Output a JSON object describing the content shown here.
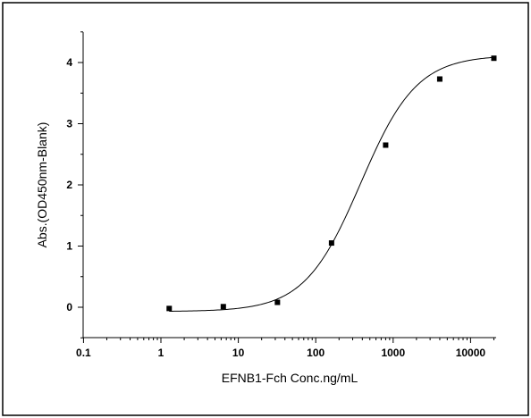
{
  "chart_data": {
    "type": "scatter",
    "title": "",
    "xlabel": "EFNB1-Fch Conc.ng/mL",
    "ylabel": "Abs.(OD450nm-Blank)",
    "x_scale": "log",
    "xlim": [
      0.1,
      20000
    ],
    "ylim": [
      -0.5,
      4.5
    ],
    "x_ticks": [
      0.1,
      1,
      10,
      100,
      1000,
      10000
    ],
    "x_tick_labels": [
      "0.1",
      "1",
      "10",
      "100",
      "1000",
      "10000"
    ],
    "y_ticks": [
      0,
      1,
      2,
      3,
      4
    ],
    "y_tick_labels": [
      "0",
      "1",
      "2",
      "3",
      "4"
    ],
    "grid": false,
    "legend": "none",
    "series": [
      {
        "marker": "square",
        "x": [
          1.28,
          6.4,
          32,
          160,
          800,
          4000,
          20000
        ],
        "y": [
          -0.02,
          0.01,
          0.08,
          1.05,
          2.65,
          3.73,
          4.07
        ]
      }
    ],
    "fit_curve": {
      "model": "4PL",
      "bottom": -0.07,
      "top": 4.12,
      "ec50": 380,
      "hill": 1.2,
      "x_range": [
        1.28,
        20000
      ]
    },
    "colors": {
      "axis": "#000000",
      "marker": "#000000",
      "curve": "#000000",
      "border": "#000000"
    }
  }
}
